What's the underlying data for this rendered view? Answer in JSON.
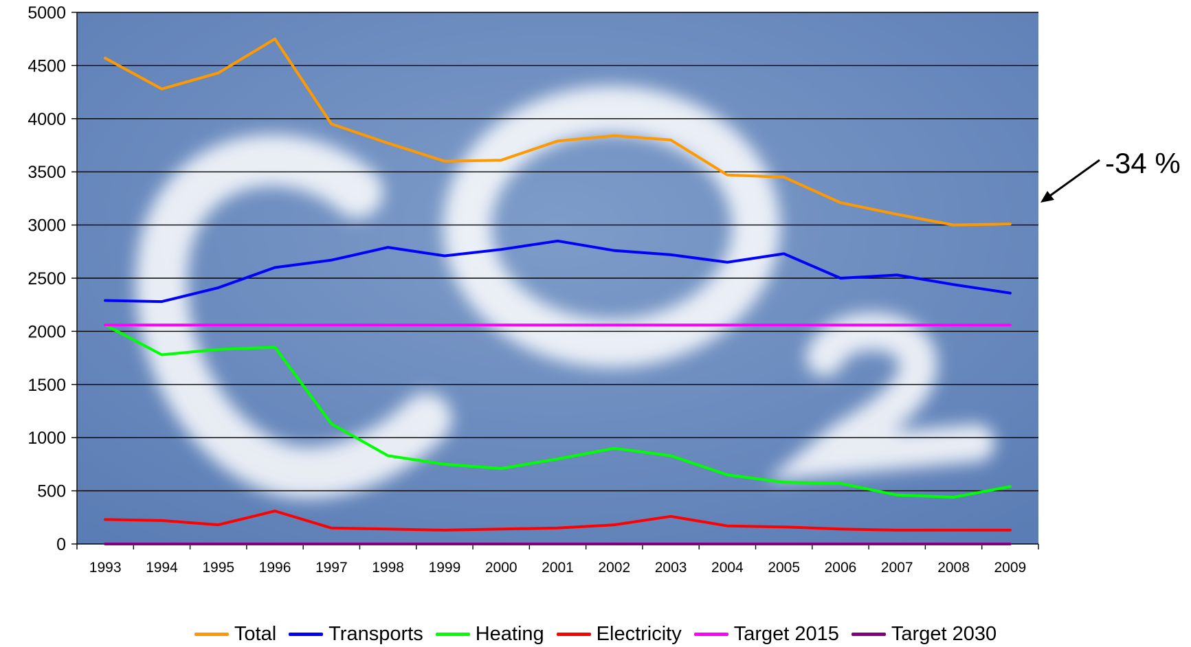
{
  "chart_data": {
    "type": "line",
    "title": "",
    "xlabel": "",
    "ylabel": "",
    "ylim": [
      0,
      5000
    ],
    "yticks": [
      0,
      500,
      1000,
      1500,
      2000,
      2500,
      3000,
      3500,
      4000,
      4500,
      5000
    ],
    "grid": "horizontal",
    "legend_position": "bottom",
    "background": "sky with CO2 cloud lettering",
    "categories": [
      "1993",
      "1994",
      "1995",
      "1996",
      "1997",
      "1998",
      "1999",
      "2000",
      "2001",
      "2002",
      "2003",
      "2004",
      "2005",
      "2006",
      "2007",
      "2008",
      "2009"
    ],
    "series": [
      {
        "name": "Total",
        "color": "#ff9900",
        "values": [
          4570,
          4280,
          4430,
          4750,
          3950,
          3770,
          3600,
          3610,
          3790,
          3840,
          3800,
          3470,
          3450,
          3210,
          3100,
          3000,
          3010
        ]
      },
      {
        "name": "Transports",
        "color": "#0000ff",
        "values": [
          2290,
          2280,
          2410,
          2600,
          2670,
          2790,
          2710,
          2770,
          2850,
          2760,
          2720,
          2650,
          2730,
          2500,
          2530,
          2440,
          2360
        ]
      },
      {
        "name": "Heating",
        "color": "#00ff00",
        "values": [
          2060,
          1780,
          1830,
          1850,
          1130,
          830,
          750,
          710,
          800,
          900,
          830,
          650,
          580,
          570,
          460,
          440,
          540
        ]
      },
      {
        "name": "Electricity",
        "color": "#ff0000",
        "values": [
          230,
          220,
          180,
          310,
          150,
          140,
          130,
          140,
          150,
          180,
          260,
          170,
          160,
          140,
          130,
          130,
          130
        ]
      },
      {
        "name": "Target 2015",
        "color": "#ff00ff",
        "values": [
          2060,
          2060,
          2060,
          2060,
          2060,
          2060,
          2060,
          2060,
          2060,
          2060,
          2060,
          2060,
          2060,
          2060,
          2060,
          2060,
          2060
        ]
      },
      {
        "name": "Target 2030",
        "color": "#800080",
        "values": [
          0,
          0,
          0,
          0,
          0,
          0,
          0,
          0,
          0,
          0,
          0,
          0,
          0,
          0,
          0,
          0,
          0
        ]
      }
    ],
    "annotations": [
      {
        "text": "-34 %",
        "arrow": "points to Total series end"
      }
    ]
  }
}
